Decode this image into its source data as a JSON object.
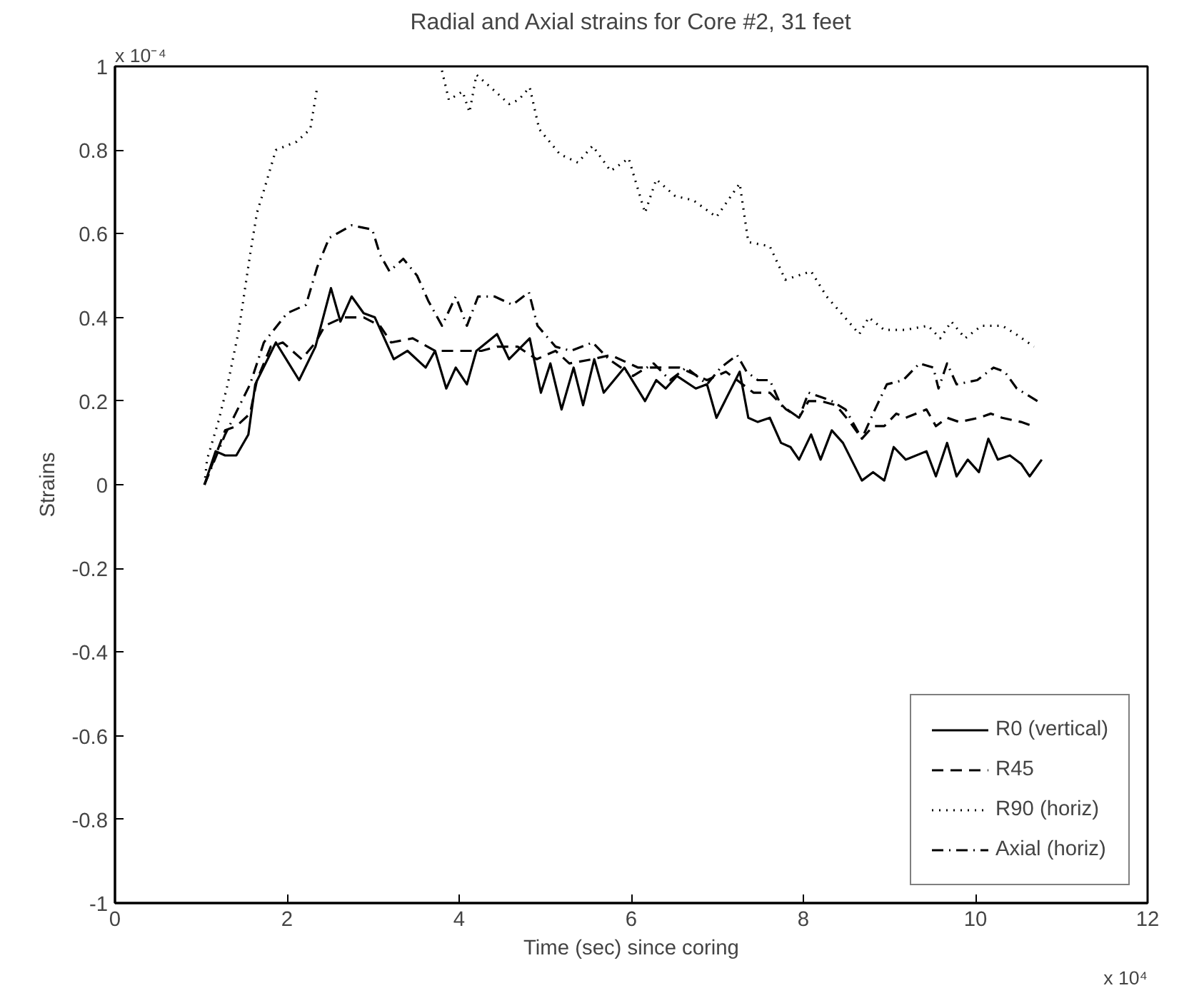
{
  "chart_data": {
    "type": "line",
    "title": "Radial and Axial strains for Core #2, 31 feet",
    "xlabel": "Time (sec) since coring",
    "ylabel": "Strains",
    "annotations": [
      "x 10⁻⁴",
      "x 10⁴"
    ],
    "xlim": [
      0,
      12
    ],
    "ylim": [
      -1,
      1
    ],
    "xticks": [
      0,
      2,
      4,
      6,
      8,
      10,
      12
    ],
    "yticks": [
      -1,
      -0.8,
      -0.6,
      -0.4,
      -0.2,
      0,
      0.2,
      0.4,
      0.6,
      0.8,
      1
    ],
    "grid": false,
    "legend": "bottom right",
    "marker": "none",
    "series": [
      {
        "name": "R0 (vertical)",
        "color": "#000000",
        "line_style": "solid",
        "x": [
          1.04,
          1.17,
          1.28,
          1.41,
          1.55,
          1.63,
          1.87,
          2.14,
          2.33,
          2.51,
          2.62,
          2.75,
          2.89,
          3.02,
          3.24,
          3.4,
          3.61,
          3.72,
          3.85,
          3.96,
          4.09,
          4.2,
          4.44,
          4.58,
          4.82,
          4.95,
          5.06,
          5.19,
          5.33,
          5.44,
          5.57,
          5.68,
          5.92,
          6.16,
          6.29,
          6.4,
          6.53,
          6.75,
          6.88,
          6.99,
          7.26,
          7.36,
          7.47,
          7.61,
          7.74,
          7.85,
          7.95,
          8.09,
          8.2,
          8.33,
          8.46,
          8.68,
          8.81,
          8.94,
          9.05,
          9.19,
          9.43,
          9.54,
          9.67,
          9.78,
          9.91,
          10.04,
          10.15,
          10.26,
          10.4,
          10.53,
          10.63,
          10.77
        ],
        "values": [
          0,
          0.08,
          0.07,
          0.07,
          0.12,
          0.24,
          0.34,
          0.25,
          0.33,
          0.47,
          0.39,
          0.45,
          0.41,
          0.4,
          0.3,
          0.32,
          0.28,
          0.32,
          0.23,
          0.28,
          0.24,
          0.32,
          0.36,
          0.3,
          0.35,
          0.22,
          0.29,
          0.18,
          0.28,
          0.19,
          0.3,
          0.22,
          0.28,
          0.2,
          0.25,
          0.23,
          0.26,
          0.23,
          0.24,
          0.16,
          0.27,
          0.16,
          0.15,
          0.16,
          0.1,
          0.09,
          0.06,
          0.12,
          0.06,
          0.13,
          0.1,
          0.01,
          0.03,
          0.01,
          0.09,
          0.06,
          0.08,
          0.02,
          0.1,
          0.02,
          0.06,
          0.03,
          0.11,
          0.06,
          0.07,
          0.05,
          0.02,
          0.06
        ]
      },
      {
        "name": "R45",
        "color": "#000000",
        "line_style": "dashed",
        "x": [
          1.04,
          1.28,
          1.41,
          1.57,
          1.65,
          1.81,
          1.95,
          2.17,
          2.33,
          2.44,
          2.65,
          2.89,
          3.08,
          3.21,
          3.46,
          3.72,
          3.99,
          4.26,
          4.44,
          4.68,
          4.9,
          5.12,
          5.28,
          5.55,
          5.76,
          6.08,
          6.29,
          6.56,
          6.88,
          7.1,
          7.23,
          7.42,
          7.61,
          7.8,
          7.95,
          8.06,
          8.2,
          8.38,
          8.54,
          8.68,
          8.81,
          8.94,
          9.08,
          9.19,
          9.43,
          9.54,
          9.67,
          9.81,
          10.04,
          10.18,
          10.31,
          10.53,
          10.67
        ],
        "values": [
          0,
          0.13,
          0.14,
          0.17,
          0.25,
          0.33,
          0.34,
          0.3,
          0.34,
          0.38,
          0.4,
          0.4,
          0.38,
          0.34,
          0.35,
          0.32,
          0.32,
          0.32,
          0.33,
          0.33,
          0.3,
          0.32,
          0.29,
          0.3,
          0.31,
          0.28,
          0.28,
          0.28,
          0.25,
          0.27,
          0.25,
          0.22,
          0.22,
          0.18,
          0.16,
          0.2,
          0.2,
          0.19,
          0.15,
          0.11,
          0.14,
          0.14,
          0.17,
          0.16,
          0.18,
          0.14,
          0.16,
          0.15,
          0.16,
          0.17,
          0.16,
          0.15,
          0.14
        ]
      },
      {
        "name": "R90 (horiz)",
        "color": "#000000",
        "line_style": "dotted",
        "x": [
          1.04,
          1.07,
          1.2,
          1.31,
          1.44,
          1.57,
          1.65,
          1.74,
          1.87,
          2.11,
          2.27,
          2.35,
          3.1,
          3.8,
          3.88,
          4.04,
          4.12,
          4.2,
          4.42,
          4.58,
          4.69,
          4.82,
          4.93,
          5.17,
          5.38,
          5.55,
          5.76,
          5.97,
          6.16,
          6.29,
          6.51,
          6.72,
          6.99,
          7.26,
          7.36,
          7.61,
          7.79,
          8.09,
          8.27,
          8.44,
          8.65,
          8.76,
          8.94,
          9.18,
          9.45,
          9.59,
          9.72,
          9.88,
          10.07,
          10.31,
          10.47,
          10.68
        ],
        "values": [
          0,
          0.06,
          0.15,
          0.24,
          0.37,
          0.55,
          0.65,
          0.71,
          0.8,
          0.82,
          0.85,
          0.95,
          null,
          0.99,
          0.92,
          0.94,
          0.89,
          0.98,
          0.94,
          0.91,
          0.92,
          0.95,
          0.85,
          0.79,
          0.77,
          0.81,
          0.75,
          0.78,
          0.65,
          0.73,
          0.69,
          0.68,
          0.64,
          0.72,
          0.58,
          0.57,
          0.49,
          0.51,
          0.45,
          0.41,
          0.36,
          0.4,
          0.37,
          0.37,
          0.38,
          0.35,
          0.39,
          0.35,
          0.38,
          0.38,
          0.36,
          0.33
        ]
      },
      {
        "name": "Axial (horiz)",
        "color": "#000000",
        "line_style": "dashdot",
        "x": [
          1.04,
          1.28,
          1.57,
          1.73,
          2.0,
          2.22,
          2.35,
          2.49,
          2.75,
          2.99,
          3.08,
          3.19,
          3.35,
          3.51,
          3.64,
          3.8,
          3.96,
          4.09,
          4.22,
          4.41,
          4.62,
          4.81,
          4.91,
          5.12,
          5.3,
          5.55,
          5.74,
          6.02,
          6.26,
          6.45,
          6.64,
          6.88,
          7.04,
          7.23,
          7.34,
          7.47,
          7.61,
          7.74,
          7.95,
          8.06,
          8.2,
          8.33,
          8.49,
          8.68,
          8.81,
          8.97,
          9.16,
          9.35,
          9.51,
          9.57,
          9.67,
          9.78,
          10.02,
          10.21,
          10.34,
          10.48,
          10.72
        ],
        "values": [
          0,
          0.12,
          0.24,
          0.34,
          0.41,
          0.43,
          0.52,
          0.59,
          0.62,
          0.61,
          0.55,
          0.51,
          0.54,
          0.5,
          0.44,
          0.38,
          0.45,
          0.38,
          0.45,
          0.45,
          0.43,
          0.46,
          0.38,
          0.33,
          0.32,
          0.34,
          0.3,
          0.26,
          0.29,
          0.25,
          0.28,
          0.24,
          0.28,
          0.31,
          0.27,
          0.25,
          0.25,
          0.19,
          0.16,
          0.22,
          0.21,
          0.2,
          0.18,
          0.11,
          0.17,
          0.24,
          0.25,
          0.29,
          0.28,
          0.23,
          0.29,
          0.24,
          0.25,
          0.28,
          0.27,
          0.23,
          0.2
        ]
      }
    ]
  }
}
